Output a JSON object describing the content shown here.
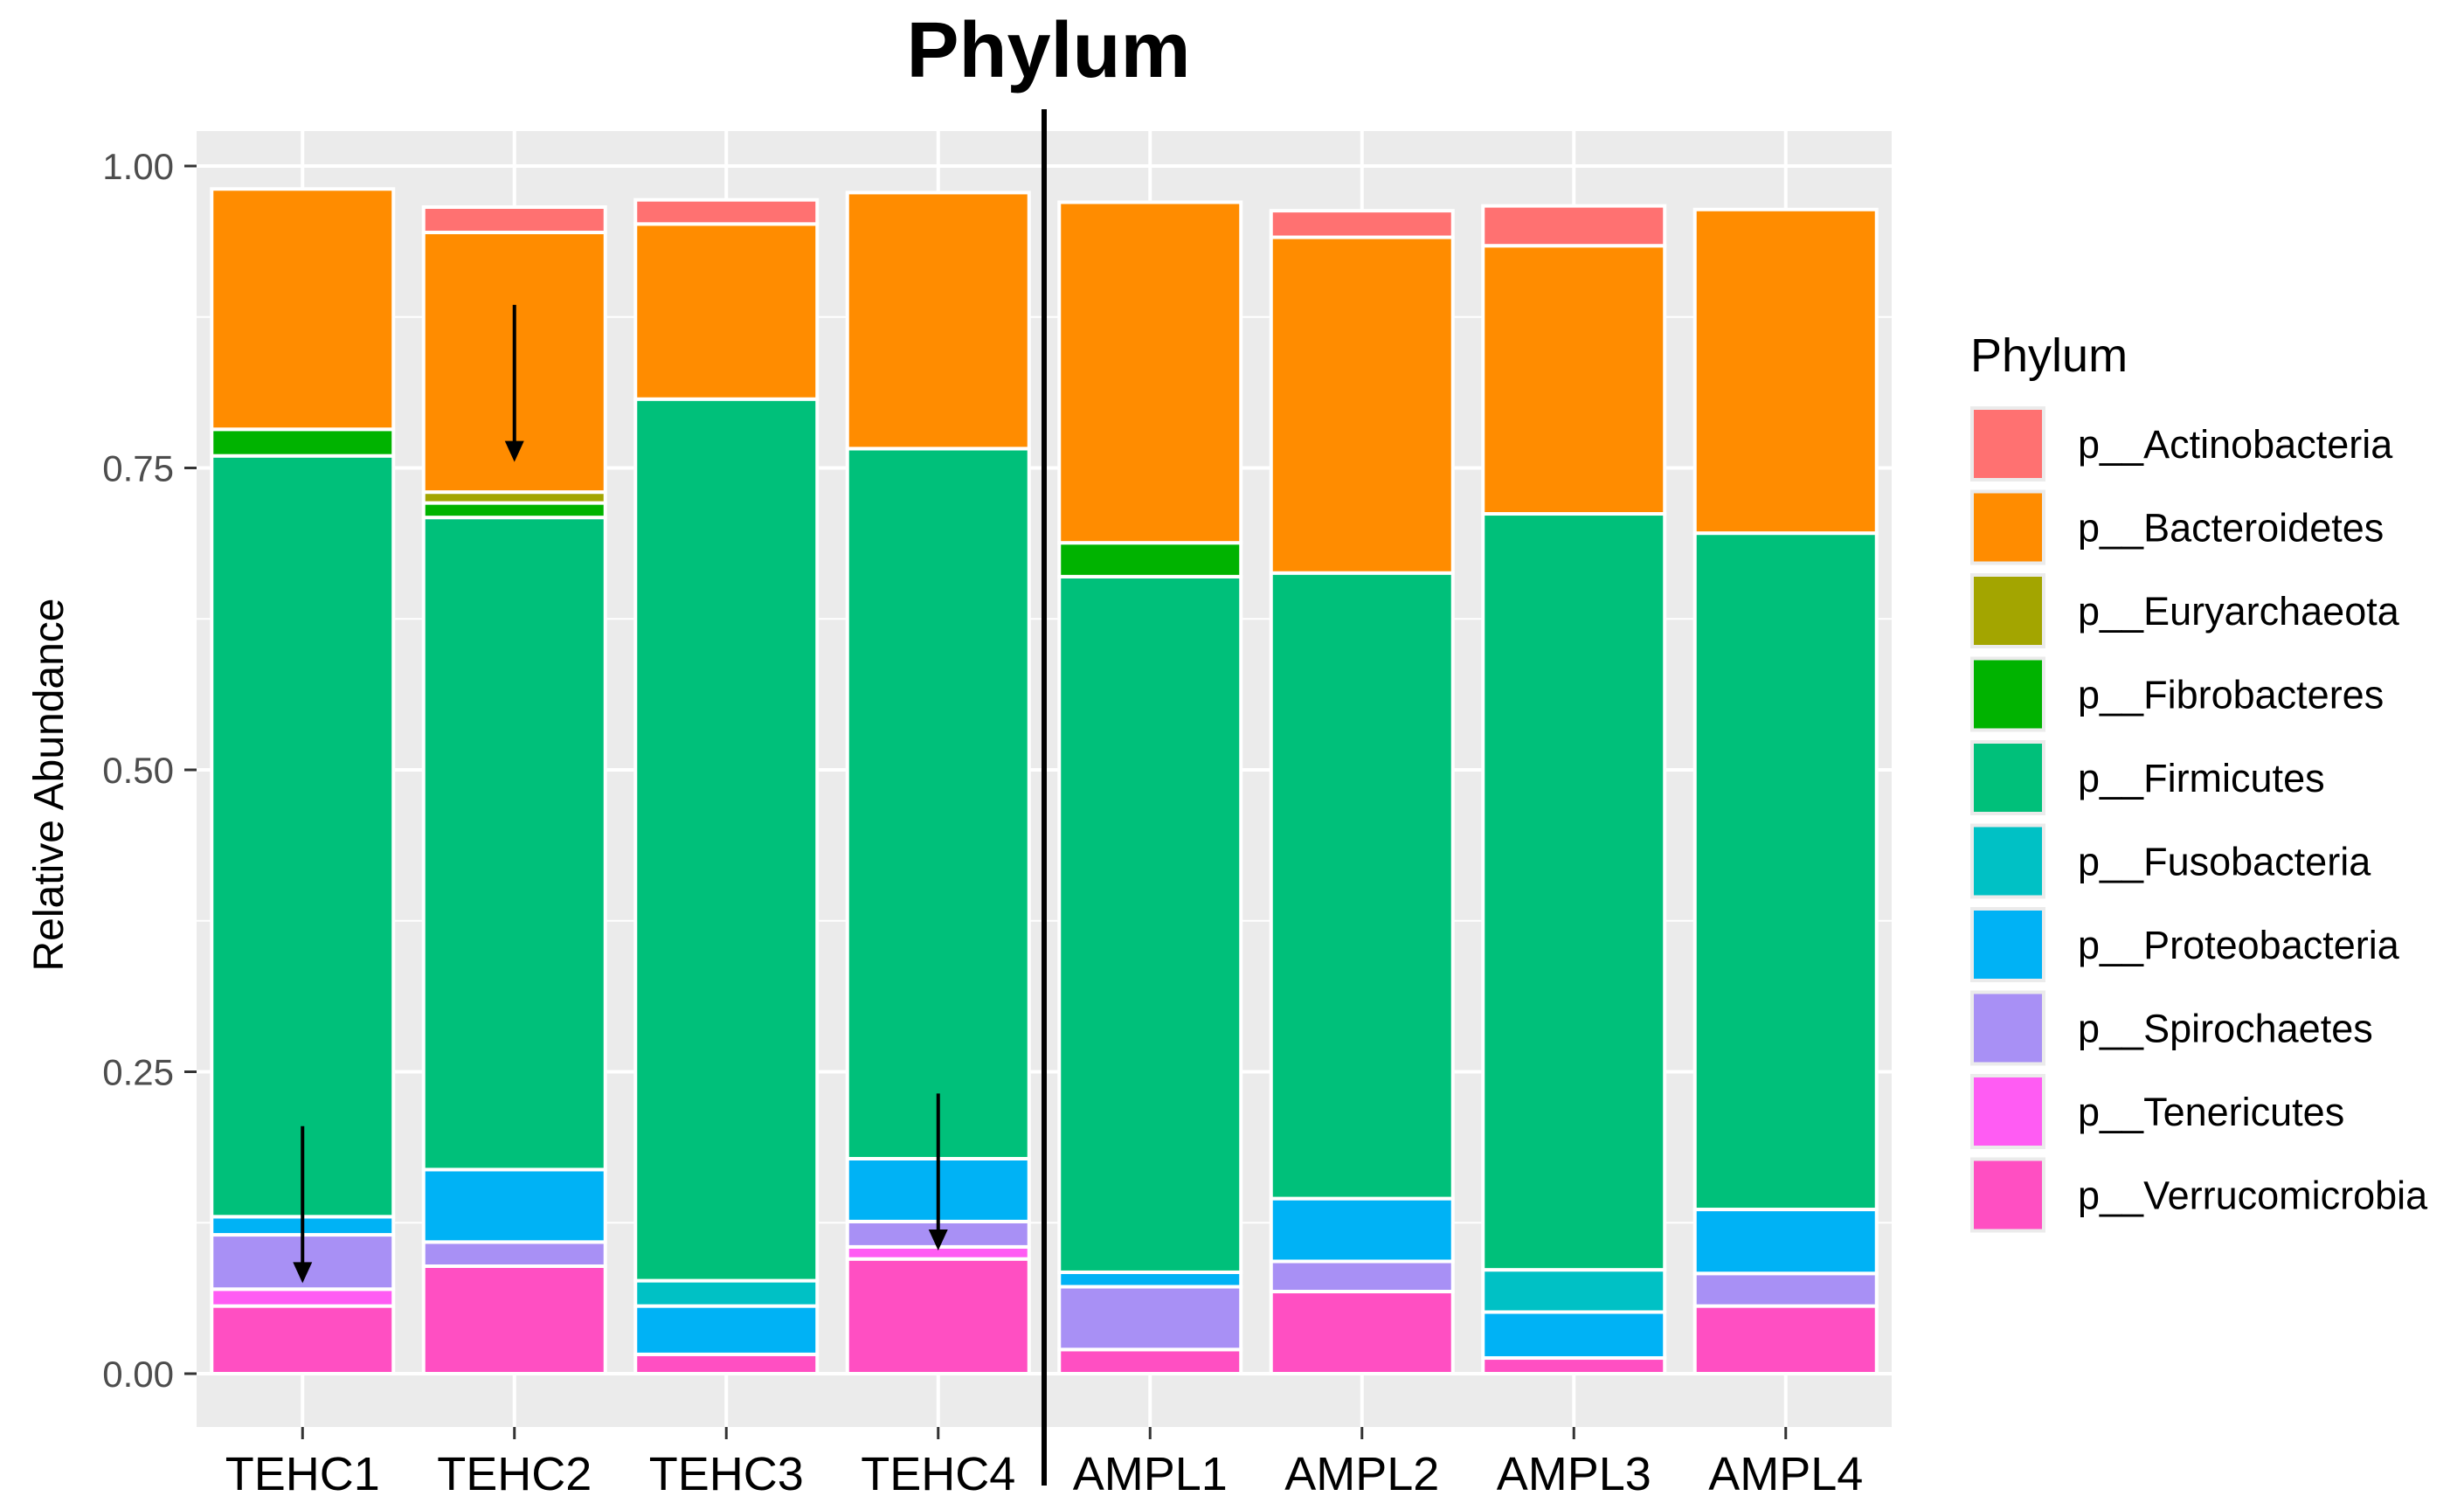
{
  "chart_data": {
    "type": "bar",
    "stacked": true,
    "title": "Phylum",
    "xlabel": "",
    "ylabel": "Relative Abundance",
    "ylim": [
      0,
      1.0
    ],
    "yticks": [
      "0.00",
      "0.25",
      "0.50",
      "0.75",
      "1.00"
    ],
    "ytick_values": [
      0,
      0.25,
      0.5,
      0.75,
      1.0
    ],
    "categories": [
      "TEHC1",
      "TEHC2",
      "TEHC3",
      "TEHC4",
      "AMPL1",
      "AMPL2",
      "AMPL3",
      "AMPL4"
    ],
    "legend": {
      "title": "Phylum",
      "position": "right"
    },
    "series": [
      {
        "name": "p__Verrucomicrobia",
        "color": "#FF4FC2",
        "values": [
          0.056,
          0.089,
          0.016,
          0.095,
          0.02,
          0.068,
          0.013,
          0.056
        ]
      },
      {
        "name": "p__Tenericutes",
        "color": "#FF5CF3",
        "values": [
          0.014,
          0.0,
          0.0,
          0.01,
          0.0,
          0.0,
          0.0,
          0.0
        ]
      },
      {
        "name": "p__Spirochaetes",
        "color": "#A890F5",
        "values": [
          0.045,
          0.02,
          0.0,
          0.021,
          0.052,
          0.025,
          0.0,
          0.027
        ]
      },
      {
        "name": "p__Proteobacteria",
        "color": "#00B2F5",
        "values": [
          0.015,
          0.06,
          0.04,
          0.052,
          0.012,
          0.052,
          0.038,
          0.053
        ]
      },
      {
        "name": "p__Fusobacteria",
        "color": "#00C1C5",
        "values": [
          0.0,
          0.0,
          0.021,
          0.0,
          0.0,
          0.0,
          0.035,
          0.0
        ]
      },
      {
        "name": "p__Firmicutes",
        "color": "#00C07A",
        "values": [
          0.63,
          0.54,
          0.73,
          0.588,
          0.576,
          0.518,
          0.626,
          0.56
        ]
      },
      {
        "name": "p__Fibrobacteres",
        "color": "#00B300",
        "values": [
          0.022,
          0.012,
          0.0,
          0.0,
          0.028,
          0.0,
          0.0,
          0.0
        ]
      },
      {
        "name": "p__Euryarchaeota",
        "color": "#A3A500",
        "values": [
          0.0,
          0.009,
          0.0,
          0.0,
          0.0,
          0.0,
          0.0,
          0.0
        ]
      },
      {
        "name": "p__Bacteroidetes",
        "color": "#FF8C00",
        "values": [
          0.199,
          0.215,
          0.145,
          0.212,
          0.282,
          0.278,
          0.222,
          0.268
        ]
      },
      {
        "name": "p__Actinobacteria",
        "color": "#FF7171",
        "values": [
          0.0,
          0.021,
          0.02,
          0.0,
          0.0,
          0.022,
          0.033,
          0.0
        ]
      }
    ],
    "legend_order": [
      "p__Actinobacteria",
      "p__Bacteroidetes",
      "p__Euryarchaeota",
      "p__Fibrobacteres",
      "p__Firmicutes",
      "p__Fusobacteria",
      "p__Proteobacteria",
      "p__Spirochaetes",
      "p__Tenericutes",
      "p__Verrucomicrobia"
    ],
    "annotations": [
      {
        "type": "arrow",
        "category": "TEHC1",
        "from_value": 0.205,
        "to_value": 0.075
      },
      {
        "type": "arrow",
        "category": "TEHC2",
        "from_value": 0.885,
        "to_value": 0.755
      },
      {
        "type": "arrow",
        "category": "TEHC4",
        "from_value": 0.232,
        "to_value": 0.102
      },
      {
        "type": "divider",
        "between": [
          "TEHC4",
          "AMPL1"
        ]
      }
    ]
  }
}
